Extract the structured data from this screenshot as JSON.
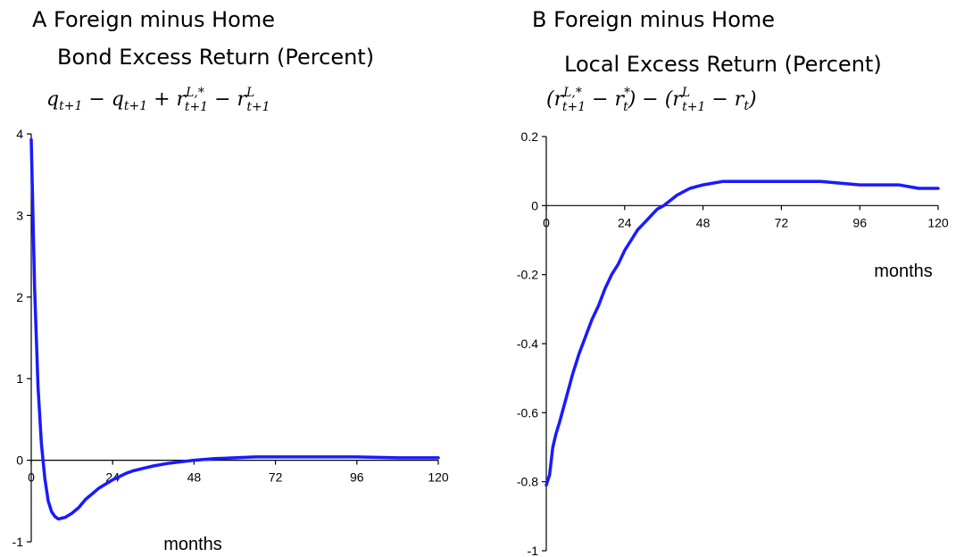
{
  "chart_data": [
    {
      "type": "line",
      "title": "A  Foreign minus Home",
      "subtitle": "Bond Excess Return (Percent)",
      "formula": "q_{t+1} − q_{t+1} + r^{L,*}_{t+1} − r^{L}_{t+1}",
      "xlabel": "months",
      "ylabel": "",
      "xlim": [
        0,
        120
      ],
      "ylim": [
        -1,
        4
      ],
      "xticks": [
        "0",
        "24",
        "48",
        "72",
        "96",
        "120"
      ],
      "yticks": [
        "-1",
        "0",
        "1",
        "2",
        "3",
        "4"
      ],
      "grid": false,
      "color": "#1a1aff",
      "series": [
        {
          "x": [
            0,
            1,
            2,
            3,
            4,
            5,
            6,
            7,
            8,
            9,
            10,
            12,
            14,
            16,
            18,
            20,
            22,
            24,
            26,
            28,
            30,
            33,
            36,
            40,
            44,
            48,
            54,
            60,
            66,
            72,
            84,
            96,
            108,
            120
          ],
          "values": [
            3.93,
            2.1,
            0.9,
            0.2,
            -0.22,
            -0.5,
            -0.63,
            -0.69,
            -0.72,
            -0.71,
            -0.7,
            -0.65,
            -0.58,
            -0.48,
            -0.41,
            -0.34,
            -0.29,
            -0.24,
            -0.2,
            -0.16,
            -0.13,
            -0.1,
            -0.07,
            -0.04,
            -0.02,
            0.0,
            0.02,
            0.03,
            0.04,
            0.04,
            0.04,
            0.04,
            0.03,
            0.03
          ]
        }
      ]
    },
    {
      "type": "line",
      "title": "B  Foreign minus Home",
      "subtitle": "Local Excess Return (Percent)",
      "formula": "(r^{L,*}_{t+1} − r^{*}_{t}) − (r^{L}_{t+1} − r_{t})",
      "xlabel": "months",
      "ylabel": "",
      "xlim": [
        0,
        120
      ],
      "ylim": [
        -1,
        0.2
      ],
      "xticks": [
        "0",
        "24",
        "48",
        "72",
        "96",
        "120"
      ],
      "yticks": [
        "-1",
        "-0.8",
        "-0.6",
        "-0.4",
        "-0.2",
        "0",
        "0.2"
      ],
      "grid": false,
      "color": "#1a1aff",
      "series": [
        {
          "x": [
            0,
            1,
            2,
            3,
            4,
            6,
            8,
            10,
            12,
            14,
            16,
            18,
            20,
            22,
            24,
            26,
            28,
            30,
            32,
            34,
            36,
            40,
            44,
            48,
            54,
            60,
            72,
            84,
            96,
            108,
            114,
            120
          ],
          "values": [
            -0.81,
            -0.78,
            -0.7,
            -0.66,
            -0.63,
            -0.56,
            -0.49,
            -0.43,
            -0.38,
            -0.33,
            -0.29,
            -0.24,
            -0.2,
            -0.17,
            -0.13,
            -0.1,
            -0.07,
            -0.05,
            -0.03,
            -0.01,
            0.0,
            0.03,
            0.05,
            0.06,
            0.07,
            0.07,
            0.07,
            0.07,
            0.06,
            0.06,
            0.05,
            0.05
          ]
        }
      ]
    }
  ]
}
